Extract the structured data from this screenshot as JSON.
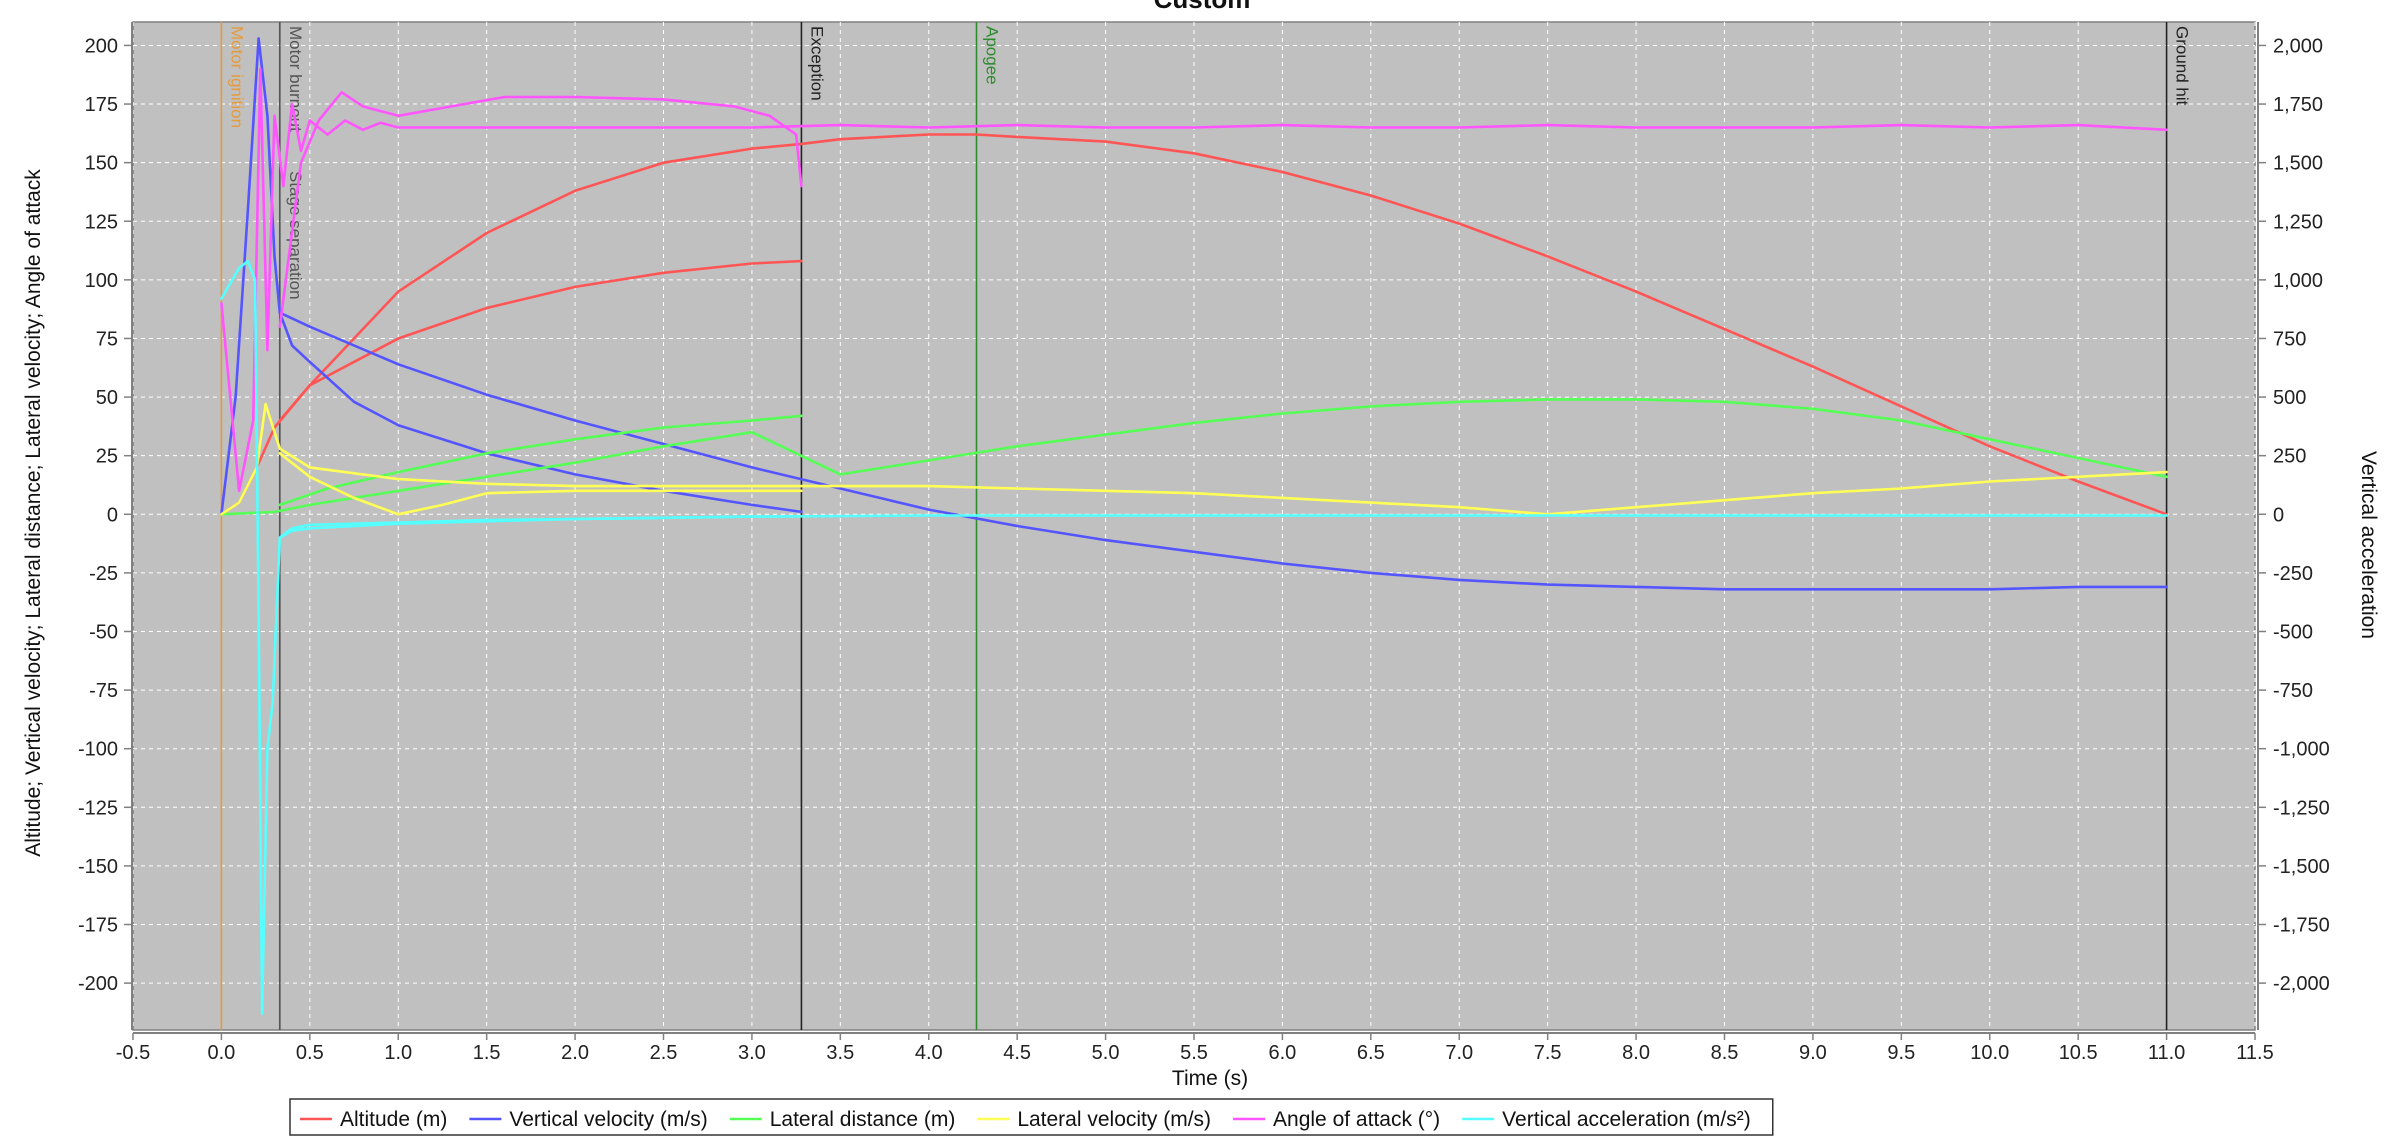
{
  "chart_data": {
    "type": "line",
    "title": "Custom",
    "xlabel": "Time (s)",
    "ylabel_left": "Altitude; Vertical velocity; Lateral distance; Lateral velocity; Angle of attack",
    "ylabel_right": "Vertical acceleration",
    "xlim": [
      -0.5,
      11.5
    ],
    "ylim_left": [
      -220,
      210
    ],
    "ylim_right": [
      -2200,
      2100
    ],
    "x_ticks": [
      -0.5,
      0.0,
      0.5,
      1.0,
      1.5,
      2.0,
      2.5,
      3.0,
      3.5,
      4.0,
      4.5,
      5.0,
      5.5,
      6.0,
      6.5,
      7.0,
      7.5,
      8.0,
      8.5,
      9.0,
      9.5,
      10.0,
      10.5,
      11.0,
      11.5
    ],
    "x_tick_labels": [
      "-0.5",
      "0.0",
      "0.5",
      "1.0",
      "1.5",
      "2.0",
      "2.5",
      "3.0",
      "3.5",
      "4.0",
      "4.5",
      "5.0",
      "5.5",
      "6.0",
      "6.5",
      "7.0",
      "7.5",
      "8.0",
      "8.5",
      "9.0",
      "9.5",
      "10.0",
      "10.5",
      "11.0",
      "11.5"
    ],
    "y_left_ticks": [
      200,
      175,
      150,
      125,
      100,
      75,
      50,
      25,
      0,
      -25,
      -50,
      -75,
      -100,
      -125,
      -150,
      -175,
      -200
    ],
    "y_left_tick_labels": [
      "200",
      "175",
      "150",
      "125",
      "100",
      "75",
      "50",
      "25",
      "0",
      "-25",
      "-50",
      "-75",
      "-100",
      "-125",
      "-150",
      "-175",
      "-200"
    ],
    "y_right_ticks": [
      2000,
      1750,
      1500,
      1250,
      1000,
      750,
      500,
      250,
      0,
      -250,
      -500,
      -750,
      -1000,
      -1250,
      -1500,
      -1750,
      -2000
    ],
    "y_right_tick_labels": [
      "2,000",
      "1,750",
      "1,500",
      "1,250",
      "1,000",
      "750",
      "500",
      "250",
      "0",
      "-250",
      "-500",
      "-750",
      "-1,000",
      "-1,250",
      "-1,500",
      "-1,750",
      "-2,000"
    ],
    "grid": true,
    "legend_position": "bottom",
    "background": "#c0c0c0",
    "events": [
      {
        "label": "Motor ignition",
        "x": 0.0,
        "color": "#e69a3c"
      },
      {
        "label": "Motor burnout",
        "x": 0.33,
        "color": "#555555"
      },
      {
        "label": "Stage separation",
        "x": 0.33,
        "color": "#555555"
      },
      {
        "label": "Exception",
        "x": 3.28,
        "color": "#222222"
      },
      {
        "label": "Apogee",
        "x": 4.27,
        "color": "#2e8b2e"
      },
      {
        "label": "Ground hit",
        "x": 11.0,
        "color": "#222222"
      }
    ],
    "series": [
      {
        "name": "Altitude (m)",
        "color": "#ff5555",
        "axis": "left",
        "x": [
          0.0,
          0.1,
          0.2,
          0.3,
          0.5,
          0.75,
          1.0,
          1.5,
          2.0,
          2.5,
          3.0,
          3.28,
          3.5,
          4.0,
          4.27,
          4.5,
          5.0,
          5.5,
          6.0,
          6.5,
          7.0,
          7.5,
          8.0,
          8.5,
          9.0,
          9.5,
          10.0,
          10.5,
          11.0
        ],
        "y": [
          0,
          5,
          20,
          37,
          55,
          75,
          95,
          120,
          138,
          150,
          156,
          158,
          160,
          162,
          162,
          161,
          159,
          154,
          146,
          136,
          124,
          110,
          95,
          79,
          63,
          46,
          29,
          14,
          0
        ]
      },
      {
        "name": "Altitude (m) stage 2",
        "color": "#ff5555",
        "axis": "left",
        "x": [
          0.33,
          0.5,
          1.0,
          1.5,
          2.0,
          2.5,
          3.0,
          3.28
        ],
        "y": [
          40,
          55,
          75,
          88,
          97,
          103,
          107,
          108
        ]
      },
      {
        "name": "Vertical velocity (m/s)",
        "color": "#5555ff",
        "axis": "left",
        "x": [
          0.0,
          0.08,
          0.15,
          0.21,
          0.26,
          0.3,
          0.33,
          0.5,
          1.0,
          1.5,
          2.0,
          2.5,
          3.0,
          3.5,
          4.0,
          4.5,
          5.0,
          5.5,
          6.0,
          6.5,
          7.0,
          7.5,
          8.0,
          8.5,
          9.0,
          9.5,
          10.0,
          10.5,
          11.0
        ],
        "y": [
          0,
          50,
          130,
          203,
          170,
          110,
          86,
          80,
          64,
          51,
          40,
          30,
          20,
          11,
          2,
          -5,
          -11,
          -16,
          -21,
          -25,
          -28,
          -30,
          -31,
          -32,
          -32,
          -32,
          -32,
          -31,
          -31
        ]
      },
      {
        "name": "Vertical velocity (m/s) stage 2",
        "color": "#5555ff",
        "axis": "left",
        "x": [
          0.33,
          0.4,
          0.5,
          0.75,
          1.0,
          1.5,
          2.0,
          2.5,
          3.0,
          3.28
        ],
        "y": [
          86,
          72,
          65,
          48,
          38,
          26,
          17,
          10,
          4,
          1
        ]
      },
      {
        "name": "Lateral distance (m)",
        "color": "#55ff55",
        "axis": "left",
        "x": [
          0.0,
          0.3,
          0.5,
          1.0,
          1.5,
          2.0,
          2.5,
          3.0,
          3.5,
          4.0,
          4.5,
          5.0,
          5.5,
          6.0,
          6.5,
          7.0,
          7.5,
          8.0,
          8.5,
          9.0,
          9.5,
          10.0,
          10.5,
          11.0
        ],
        "y": [
          0,
          1,
          4,
          10,
          16,
          22,
          29,
          35,
          17,
          23,
          29,
          34,
          39,
          43,
          46,
          48,
          49,
          49,
          48,
          45,
          40,
          32,
          24,
          16
        ]
      },
      {
        "name": "Lateral distance (m) stage 2",
        "color": "#55ff55",
        "axis": "left",
        "x": [
          0.33,
          0.6,
          1.0,
          1.5,
          2.0,
          2.5,
          3.0,
          3.28
        ],
        "y": [
          4,
          11,
          18,
          26,
          32,
          37,
          40,
          42
        ]
      },
      {
        "name": "Lateral velocity (m/s)",
        "color": "#ffff55",
        "axis": "left",
        "x": [
          0.0,
          0.1,
          0.2,
          0.25,
          0.33,
          0.5,
          1.0,
          1.5,
          2.0,
          2.5,
          3.0,
          3.5,
          4.0,
          4.5,
          5.0,
          5.5,
          6.0,
          6.5,
          7.0,
          7.5,
          8.0,
          8.5,
          9.0,
          9.5,
          10.0,
          10.5,
          11.0
        ],
        "y": [
          0,
          5,
          20,
          47,
          28,
          20,
          15,
          13,
          12,
          12,
          12,
          12,
          12,
          11,
          10,
          9,
          7,
          5,
          3,
          0,
          3,
          6,
          9,
          11,
          14,
          16,
          18
        ]
      },
      {
        "name": "Lateral velocity (m/s) stage 2",
        "color": "#ffff55",
        "axis": "left",
        "x": [
          0.33,
          0.5,
          0.75,
          1.0,
          1.25,
          1.5,
          2.0,
          2.5,
          3.0,
          3.28
        ],
        "y": [
          26,
          16,
          7,
          0,
          4,
          9,
          10,
          10,
          10,
          10
        ]
      },
      {
        "name": "Angle of attack (°)",
        "color": "#ff55ff",
        "axis": "left",
        "x": [
          0.0,
          0.1,
          0.18,
          0.22,
          0.26,
          0.3,
          0.35,
          0.4,
          0.45,
          0.5,
          0.6,
          0.7,
          0.8,
          0.9,
          1.0,
          1.5,
          2.0,
          2.5,
          3.0,
          3.5,
          4.0,
          4.5,
          5.0,
          5.5,
          6.0,
          6.5,
          7.0,
          7.5,
          8.0,
          8.5,
          9.0,
          9.5,
          10.0,
          10.5,
          11.0
        ],
        "y": [
          90,
          10,
          40,
          190,
          70,
          170,
          140,
          175,
          155,
          168,
          162,
          168,
          164,
          167,
          165,
          165,
          165,
          165,
          165,
          166,
          165,
          166,
          165,
          165,
          166,
          165,
          165,
          166,
          165,
          165,
          165,
          166,
          165,
          166,
          164
        ]
      },
      {
        "name": "Angle of attack (°) stage 2",
        "color": "#ff55ff",
        "axis": "left",
        "x": [
          0.33,
          0.45,
          0.55,
          0.68,
          0.8,
          1.0,
          1.3,
          1.6,
          2.0,
          2.5,
          2.9,
          3.1,
          3.25,
          3.28
        ],
        "y": [
          80,
          150,
          168,
          180,
          174,
          170,
          174,
          178,
          178,
          177,
          174,
          170,
          162,
          140
        ]
      },
      {
        "name": "Vertical acceleration (m/s²)",
        "color": "#55ffff",
        "axis": "right",
        "x": [
          0.0,
          0.1,
          0.15,
          0.19,
          0.21,
          0.23,
          0.26,
          0.29,
          0.33,
          0.4,
          0.5,
          1.0,
          2.0,
          3.0,
          4.0,
          5.0,
          6.0,
          7.0,
          8.0,
          9.0,
          10.0,
          11.0
        ],
        "y": [
          920,
          1050,
          1080,
          1000,
          -400,
          -2130,
          -1000,
          -800,
          -100,
          -70,
          -60,
          -40,
          -20,
          -10,
          -5,
          -5,
          -5,
          -5,
          -5,
          -5,
          -5,
          -5
        ]
      },
      {
        "name": "Vertical acceleration (m/s²) stage 2",
        "color": "#55ffff",
        "axis": "right",
        "x": [
          0.33,
          0.4,
          0.5,
          1.0,
          1.5,
          2.0,
          2.5,
          3.0,
          3.28
        ],
        "y": [
          -100,
          -60,
          -45,
          -35,
          -25,
          -20,
          -15,
          -10,
          -8
        ]
      }
    ],
    "legend": [
      {
        "label": "Altitude (m)",
        "color": "#ff5555"
      },
      {
        "label": "Vertical velocity (m/s)",
        "color": "#5555ff"
      },
      {
        "label": "Lateral distance (m)",
        "color": "#55ff55"
      },
      {
        "label": "Lateral velocity (m/s)",
        "color": "#ffff55"
      },
      {
        "label": "Angle of attack (°)",
        "color": "#ff55ff"
      },
      {
        "label": "Vertical acceleration (m/s²)",
        "color": "#55ffff"
      }
    ]
  }
}
